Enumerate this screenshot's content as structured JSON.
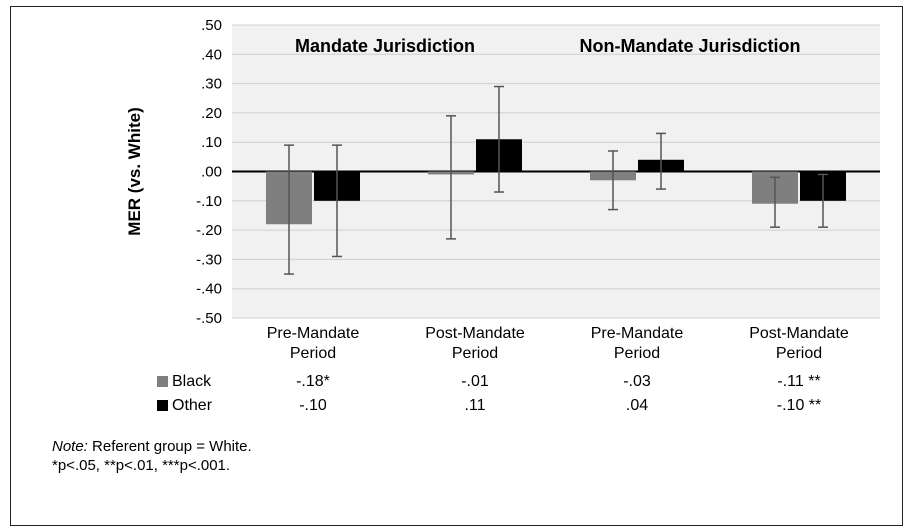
{
  "chart_data": {
    "type": "bar",
    "ylabel": "MER (vs. White)",
    "ylim": [
      -0.5,
      0.5
    ],
    "yticks": [
      ".50",
      ".40",
      ".30",
      ".20",
      ".10",
      ".00",
      "-.10",
      "-.20",
      "-.30",
      "-.40",
      "-.50"
    ],
    "panel_labels": [
      "Mandate Jurisdiction",
      "Non-Mandate Jurisdiction"
    ],
    "categories": [
      "Pre-Mandate Period",
      "Post-Mandate Period",
      "Pre-Mandate Period",
      "Post-Mandate Period"
    ],
    "series": [
      {
        "name": "Black",
        "color": "#7f7f7f",
        "values": [
          -0.18,
          -0.01,
          -0.03,
          -0.11
        ],
        "ci_low": [
          -0.35,
          -0.23,
          -0.13,
          -0.19
        ],
        "ci_high": [
          0.09,
          0.19,
          0.07,
          -0.02
        ],
        "table_labels": [
          "-.18*",
          "-.01",
          "-.03",
          "-.11 **"
        ]
      },
      {
        "name": "Other",
        "color": "#000000",
        "values": [
          -0.1,
          0.11,
          0.04,
          -0.1
        ],
        "ci_low": [
          -0.29,
          -0.07,
          -0.06,
          -0.19
        ],
        "ci_high": [
          0.09,
          0.29,
          0.13,
          -0.01
        ],
        "table_labels": [
          "-.10",
          ".11",
          ".04",
          "-.10 **"
        ]
      }
    ],
    "grid": true
  },
  "note": {
    "line1_italic": "Note:",
    "line1_rest": " Referent group = White.",
    "line2": "*p<.05, **p<.01, ***p<.001."
  }
}
